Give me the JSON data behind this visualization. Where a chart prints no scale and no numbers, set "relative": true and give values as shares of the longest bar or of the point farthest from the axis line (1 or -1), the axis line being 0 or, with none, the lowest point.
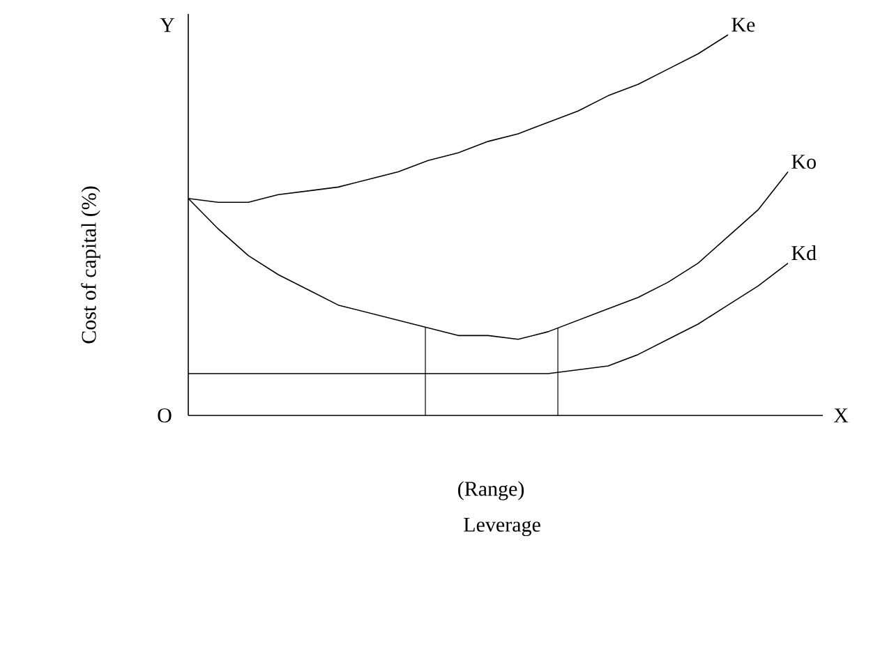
{
  "chart_data": {
    "type": "line",
    "relative": true,
    "xlabel": "Leverage",
    "ylabel": "Cost of capital (%)",
    "categories": [
      null,
      null,
      null,
      null,
      null,
      null,
      null,
      null,
      null,
      null,
      null,
      null,
      null,
      null,
      null,
      null,
      null,
      null,
      null,
      null,
      null
    ],
    "series": [
      {
        "name": "Ke",
        "color": "#000000",
        "values": [
          0.57,
          0.56,
          0.56,
          0.58,
          0.59,
          0.6,
          0.62,
          0.64,
          0.67,
          0.69,
          0.72,
          0.74,
          0.77,
          0.8,
          0.84,
          0.87,
          0.91,
          0.95,
          1.0,
          null,
          null
        ]
      },
      {
        "name": "Ko",
        "color": "#000000",
        "values": [
          0.57,
          0.49,
          0.42,
          0.37,
          0.33,
          0.29,
          0.27,
          0.25,
          0.23,
          0.21,
          0.21,
          0.2,
          0.22,
          0.25,
          0.28,
          0.31,
          0.35,
          0.4,
          0.47,
          0.54,
          0.64
        ]
      },
      {
        "name": "Kd",
        "color": "#000000",
        "values": [
          0.11,
          0.11,
          0.11,
          0.11,
          0.11,
          0.11,
          0.11,
          0.11,
          0.11,
          0.11,
          0.11,
          0.11,
          0.11,
          0.12,
          0.13,
          0.16,
          0.2,
          0.24,
          0.29,
          0.34,
          0.4
        ]
      }
    ],
    "annotations": [
      "Y",
      "O",
      "X",
      "(Range)"
    ],
    "marker": "none",
    "line_style": "solid"
  }
}
